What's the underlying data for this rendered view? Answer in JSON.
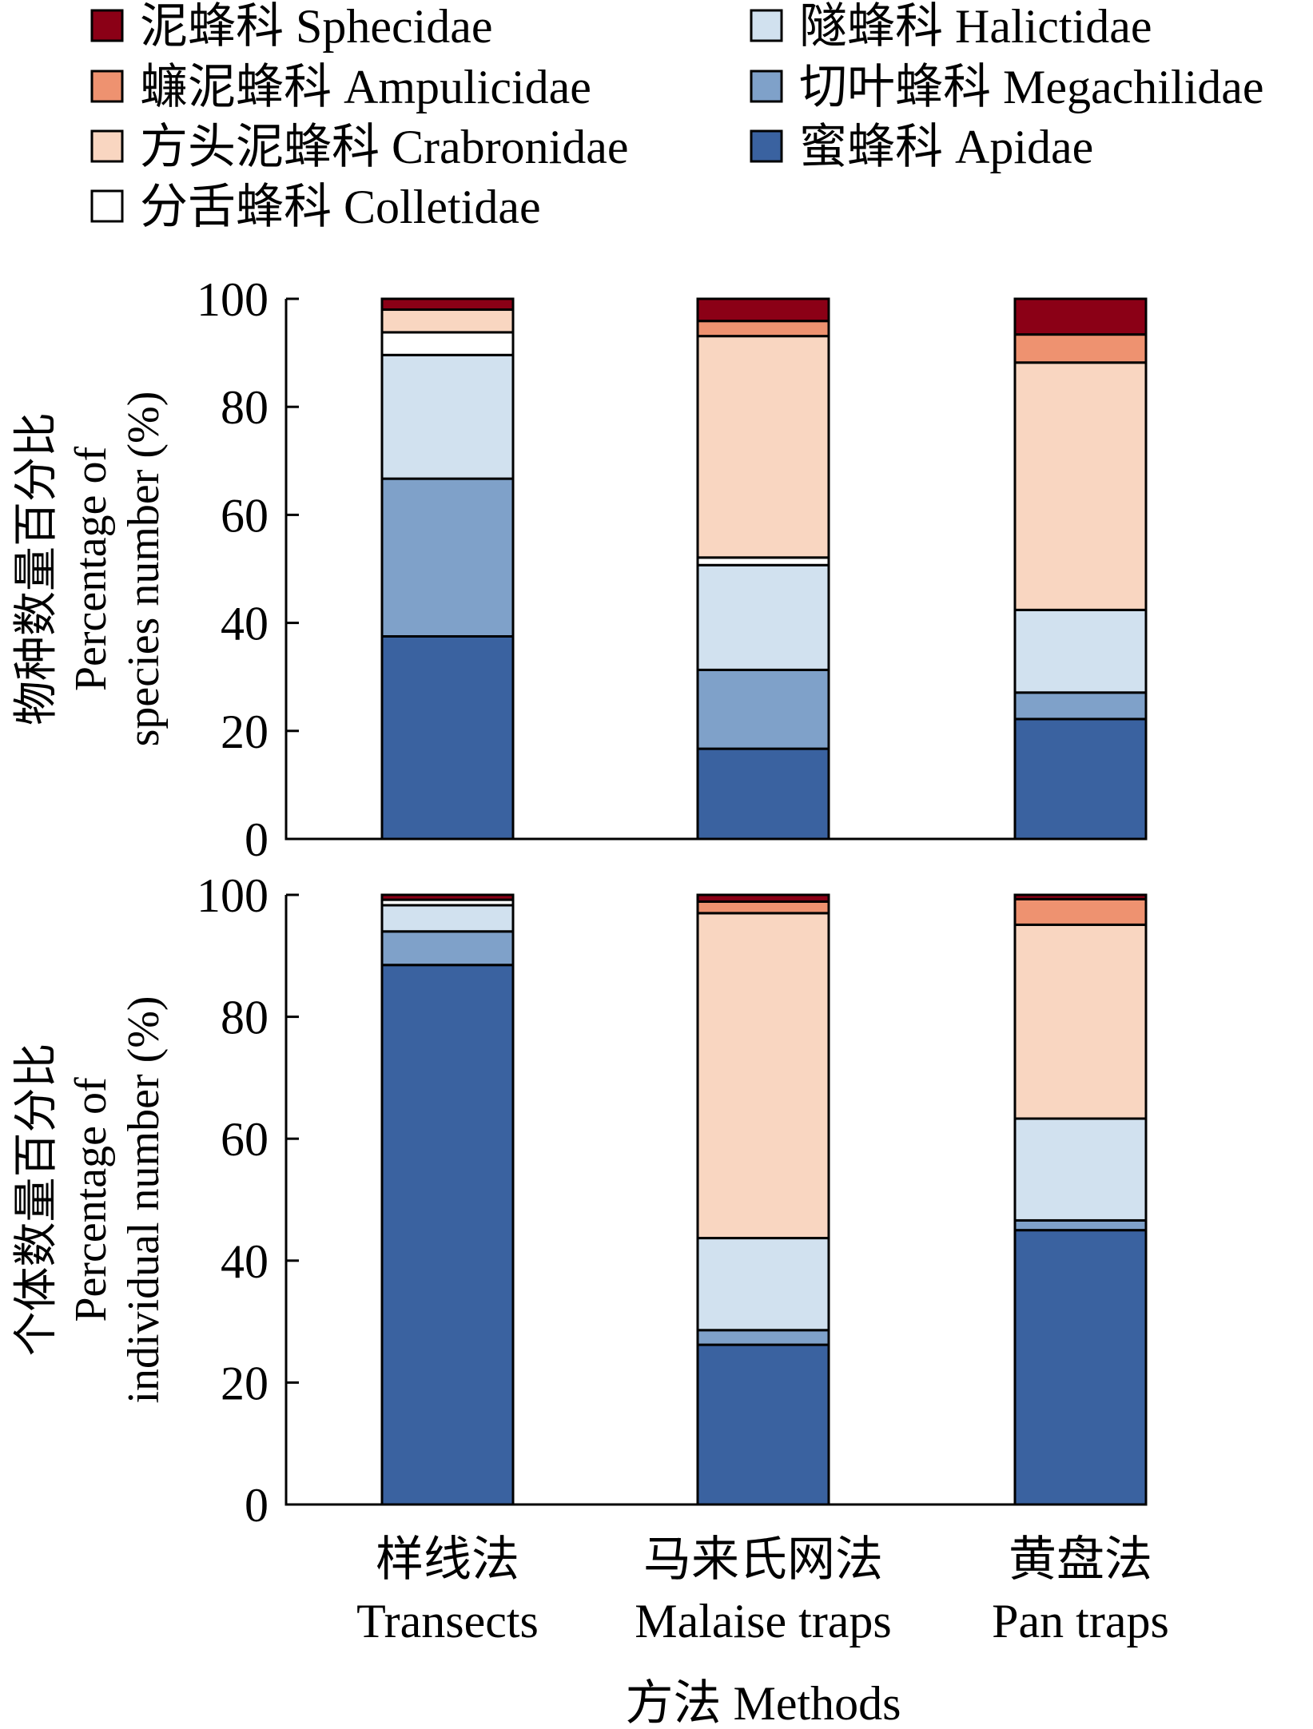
{
  "colors": {
    "Sphecidae": "#8b0016",
    "Ampulicidae": "#ee9270",
    "Crabronidae": "#f9d6c1",
    "Colletidae": "#ffffff",
    "Halictidae": "#d1e1ef",
    "Megachilidae": "#7fa1c9",
    "Apidae": "#3a62a0"
  },
  "legend": [
    {
      "key": "Sphecidae",
      "label": "泥蜂科 Sphecidae"
    },
    {
      "key": "Ampulicidae",
      "label": "蠊泥蜂科 Ampulicidae"
    },
    {
      "key": "Crabronidae",
      "label": "方头泥蜂科 Crabronidae"
    },
    {
      "key": "Colletidae",
      "label": "分舌蜂科 Colletidae"
    },
    {
      "key": "Halictidae",
      "label": "隧蜂科 Halictidae"
    },
    {
      "key": "Megachilidae",
      "label": "切叶蜂科 Megachilidae"
    },
    {
      "key": "Apidae",
      "label": "蜜蜂科 Apidae"
    }
  ],
  "x_axis": {
    "title": "方法 Methods",
    "categories": [
      {
        "zh": "样线法",
        "en": "Transects"
      },
      {
        "zh": "马来氏网法",
        "en": "Malaise traps"
      },
      {
        "zh": "黄盘法",
        "en": "Pan traps"
      }
    ]
  },
  "chart_data": [
    {
      "type": "bar",
      "stacked": true,
      "ylabel_zh": "物种数量百分比",
      "ylabel_en_1": "Percentage of",
      "ylabel_en_2": "species number (%)",
      "ylim": [
        0,
        100
      ],
      "yticks": [
        "0",
        "20",
        "40",
        "60",
        "80",
        "100"
      ],
      "categories": [
        "Transects",
        "Malaise traps",
        "Pan traps"
      ],
      "series": [
        {
          "name": "Apidae",
          "values": [
            37.5,
            16.7,
            22.2
          ]
        },
        {
          "name": "Megachilidae",
          "values": [
            29.2,
            14.6,
            4.9
          ]
        },
        {
          "name": "Halictidae",
          "values": [
            22.9,
            19.4,
            15.3
          ]
        },
        {
          "name": "Colletidae",
          "values": [
            4.2,
            1.4,
            0
          ]
        },
        {
          "name": "Crabronidae",
          "values": [
            4.2,
            41.0,
            45.8
          ]
        },
        {
          "name": "Ampulicidae",
          "values": [
            0,
            2.8,
            5.2
          ]
        },
        {
          "name": "Sphecidae",
          "values": [
            2.0,
            4.1,
            6.6
          ]
        }
      ]
    },
    {
      "type": "bar",
      "stacked": true,
      "ylabel_zh": "个体数量百分比",
      "ylabel_en_1": "Percentage of",
      "ylabel_en_2": "individual number (%)",
      "ylim": [
        0,
        100
      ],
      "yticks": [
        "0",
        "20",
        "40",
        "60",
        "80",
        "100"
      ],
      "categories": [
        "Transects",
        "Malaise traps",
        "Pan traps"
      ],
      "series": [
        {
          "name": "Apidae",
          "values": [
            88.5,
            26.2,
            45.0
          ]
        },
        {
          "name": "Megachilidae",
          "values": [
            5.5,
            2.4,
            1.6
          ]
        },
        {
          "name": "Halictidae",
          "values": [
            4.3,
            15.1,
            16.7
          ]
        },
        {
          "name": "Colletidae",
          "values": [
            0.9,
            0,
            0
          ]
        },
        {
          "name": "Crabronidae",
          "values": [
            0,
            53.3,
            31.8
          ]
        },
        {
          "name": "Ampulicidae",
          "values": [
            0,
            1.9,
            4.2
          ]
        },
        {
          "name": "Sphecidae",
          "values": [
            0.8,
            1.1,
            0.7
          ]
        }
      ]
    }
  ]
}
